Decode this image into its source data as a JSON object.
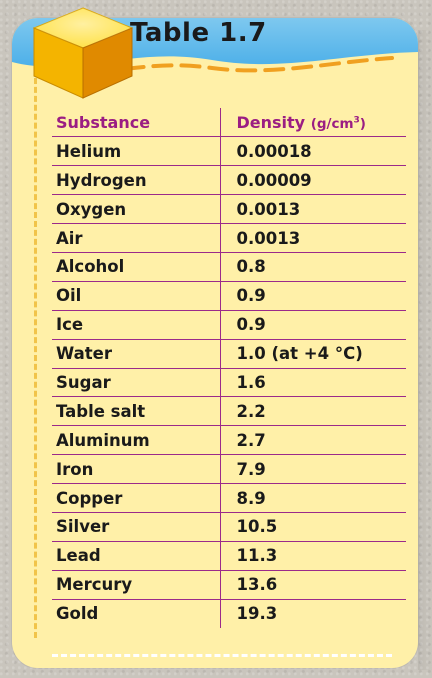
{
  "title": "Table 1.7",
  "headers": {
    "substance": "Substance",
    "density": "Density",
    "density_unit_base": "(g/cm",
    "density_unit_exp": "3",
    "density_unit_close": ")"
  },
  "rows": [
    {
      "substance": "Helium",
      "density": "0.00018"
    },
    {
      "substance": "Hydrogen",
      "density": "0.00009"
    },
    {
      "substance": "Oxygen",
      "density": "0.0013"
    },
    {
      "substance": "Air",
      "density": "0.0013"
    },
    {
      "substance": "Alcohol",
      "density": "0.8"
    },
    {
      "substance": "Oil",
      "density": "0.9"
    },
    {
      "substance": "Ice",
      "density": "0.9"
    },
    {
      "substance": "Water",
      "density": "1.0 (at +4 °C)"
    },
    {
      "substance": "Sugar",
      "density": "1.6"
    },
    {
      "substance": "Table salt",
      "density": "2.2"
    },
    {
      "substance": "Aluminum",
      "density": "2.7"
    },
    {
      "substance": "Iron",
      "density": "7.9"
    },
    {
      "substance": "Copper",
      "density": "8.9"
    },
    {
      "substance": "Silver",
      "density": "10.5"
    },
    {
      "substance": "Lead",
      "density": "11.3"
    },
    {
      "substance": "Mercury",
      "density": "13.6"
    },
    {
      "substance": "Gold",
      "density": "19.3"
    }
  ],
  "colors": {
    "card_background": "#fff0a8",
    "header_band": "#4aaee8",
    "header_text": "#9b1d83",
    "rule_lines": "#9b2a8a",
    "dash_orange": "#f0a020"
  },
  "icons": {
    "decoration": "gold-cube-icon"
  }
}
